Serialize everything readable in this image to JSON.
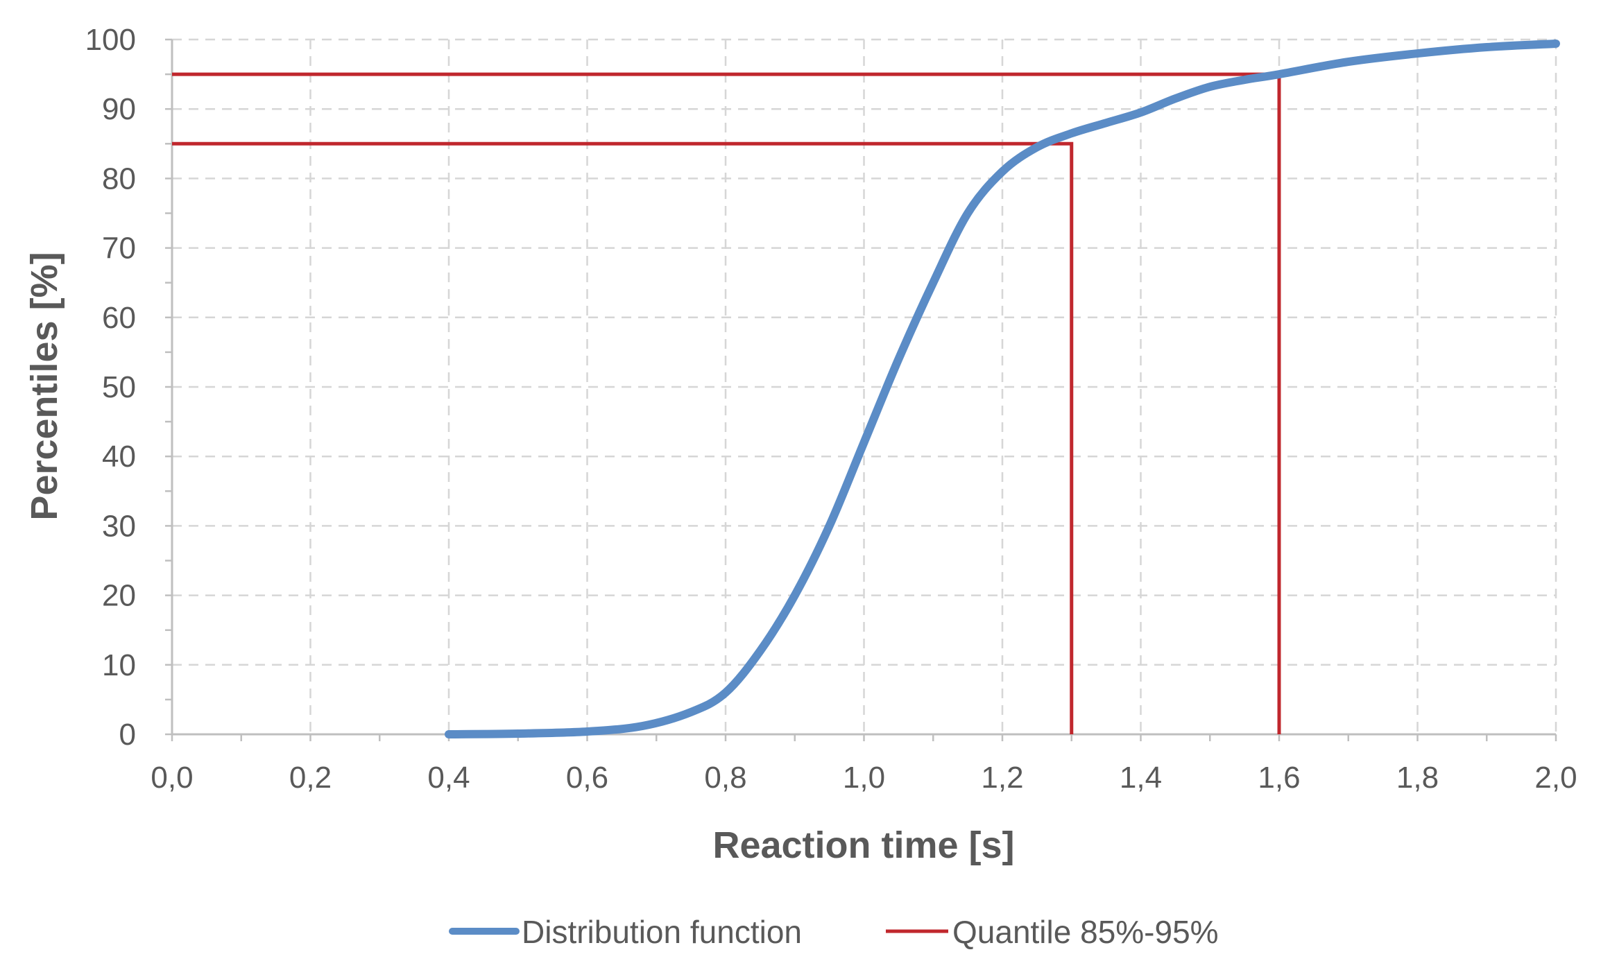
{
  "chart_data": {
    "type": "line",
    "xlabel": "Reaction time [s]",
    "ylabel": "Percentiles [%]",
    "xlim": [
      0.0,
      2.0
    ],
    "ylim": [
      0,
      100
    ],
    "x_ticks": [
      "0,0",
      "0,2",
      "0,4",
      "0,6",
      "0,8",
      "1,0",
      "1,2",
      "1,4",
      "1,6",
      "1,8",
      "2,0"
    ],
    "y_ticks": [
      "0",
      "10",
      "20",
      "30",
      "40",
      "50",
      "60",
      "70",
      "80",
      "90",
      "100"
    ],
    "grid": true,
    "legend_position": "bottom",
    "series": [
      {
        "name": "Distribution function",
        "color": "#5b8cc6",
        "x": [
          0.4,
          0.5,
          0.6,
          0.68,
          0.75,
          0.8,
          0.85,
          0.9,
          0.95,
          1.0,
          1.05,
          1.1,
          1.15,
          1.2,
          1.25,
          1.3,
          1.35,
          1.4,
          1.45,
          1.5,
          1.55,
          1.6,
          1.7,
          1.8,
          1.9,
          2.0
        ],
        "y": [
          0,
          0.1,
          0.4,
          1.2,
          3.2,
          6,
          12,
          20,
          30,
          42,
          54,
          65,
          75,
          81,
          84.5,
          86.5,
          88,
          89.5,
          91.5,
          93.2,
          94.2,
          95,
          96.8,
          98,
          98.9,
          99.4
        ]
      },
      {
        "name": "Quantile 85%-95%",
        "color": "#c0272d",
        "lines": [
          {
            "x": [
              0.0,
              1.3,
              1.3
            ],
            "y": [
              85,
              85,
              0
            ]
          },
          {
            "x": [
              0.0,
              1.6,
              1.6
            ],
            "y": [
              95,
              95,
              0
            ]
          }
        ]
      }
    ]
  }
}
